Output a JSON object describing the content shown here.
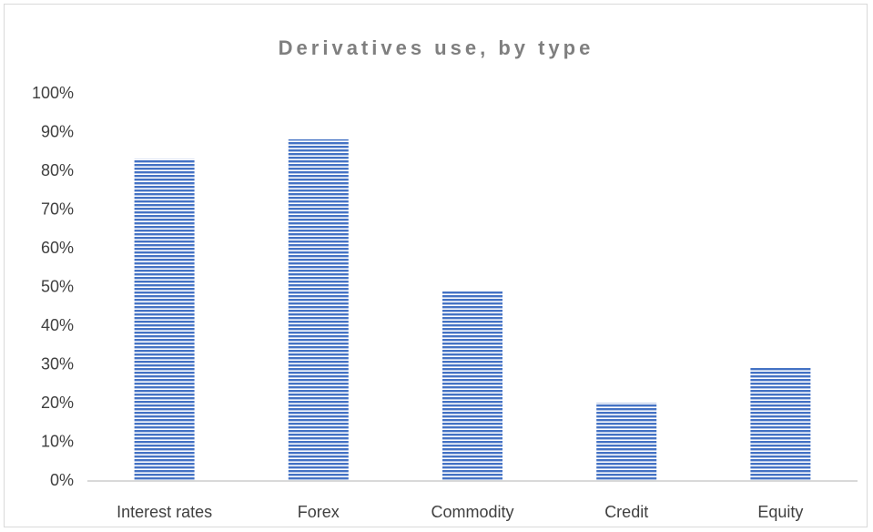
{
  "chart_data": {
    "type": "bar",
    "title": "Derivatives use, by type",
    "xlabel": "",
    "ylabel": "",
    "categories": [
      "Interest rates",
      "Forex",
      "Commodity",
      "Credit",
      "Equity"
    ],
    "values": [
      0.83,
      0.88,
      0.49,
      0.2,
      0.29
    ],
    "ylim": [
      0,
      1
    ],
    "yticks": [
      "0%",
      "10%",
      "20%",
      "30%",
      "40%",
      "50%",
      "60%",
      "70%",
      "80%",
      "90%",
      "100%"
    ],
    "grid": false,
    "legend": "none",
    "bar_color": "#4472c4",
    "bar_pattern": "horizontal-stripes"
  }
}
